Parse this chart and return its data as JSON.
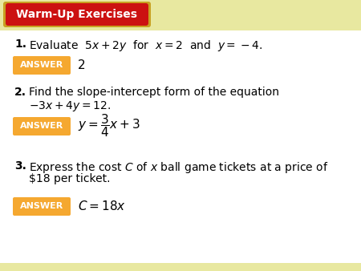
{
  "background_color": "#FAFAE8",
  "title": "Warm-Up Exercises",
  "title_bg": "#CC1111",
  "title_border_color": "#C8A020",
  "title_text_color": "#FFFFFF",
  "answer_box_color": "#F5A830",
  "body_bg": "#FFFFFF",
  "q1_num": "1.",
  "q1_line1": "Evaluate  $5x + 2y$  for  $x = 2$  and  $y = -4$.",
  "q1_answer": "2",
  "q2_num": "2.",
  "q2_line1": "Find the slope-intercept form of the equation",
  "q2_line2": "$-3x + 4y = 12.$",
  "q2_answer": "$y = \\dfrac{3}{4}x + 3$",
  "q3_num": "3.",
  "q3_line1": "Express the cost $C$ of $x$ ball game tickets at a price of",
  "q3_line2": "$18 per ticket.",
  "q3_answer": "$C = 18x$",
  "header_stripe_color": "#E8E8A0",
  "bottom_stripe_color": "#E8E8A0"
}
